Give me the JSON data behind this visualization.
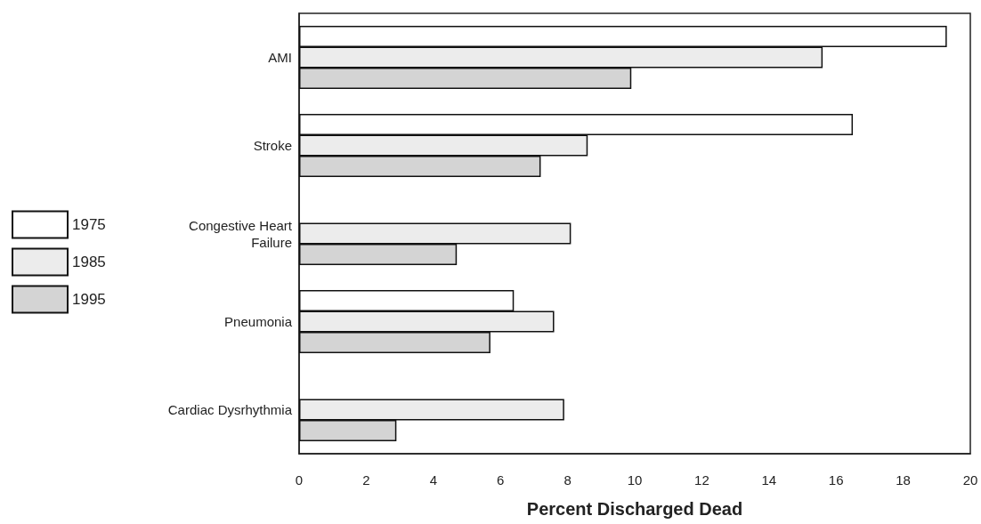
{
  "chart_data": {
    "type": "bar",
    "orientation": "horizontal",
    "xlabel": "Percent Discharged Dead",
    "categories": [
      "AMI",
      "Stroke",
      "Congestive Heart\nFailure",
      "Pneumonia",
      "Cardiac Dysrhythmia"
    ],
    "series": [
      {
        "name": "1975",
        "color": "#ffffff",
        "values": [
          19.3,
          16.5,
          null,
          6.4,
          null
        ]
      },
      {
        "name": "1985",
        "color": "#ececec",
        "values": [
          15.6,
          8.6,
          8.1,
          7.6,
          7.9
        ]
      },
      {
        "name": "1995",
        "color": "#d4d4d4",
        "values": [
          9.9,
          7.2,
          4.7,
          5.7,
          2.9
        ]
      }
    ],
    "xlim": [
      0,
      20
    ],
    "xticks": [
      0,
      2,
      4,
      6,
      8,
      10,
      12,
      14,
      16,
      18,
      20
    ],
    "grid": false,
    "legend": "left"
  }
}
